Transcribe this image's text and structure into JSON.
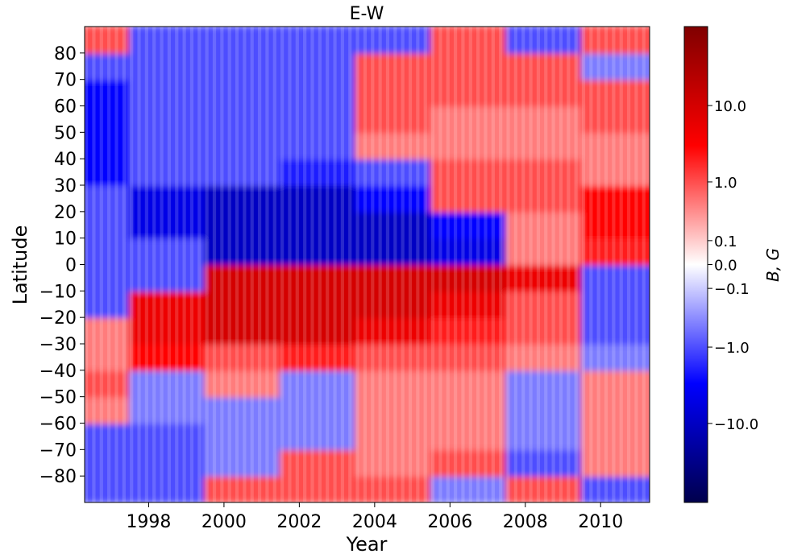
{
  "chart_data": {
    "type": "heatmap",
    "title": "E-W",
    "xlabel": "Year",
    "ylabel": "Latitude",
    "xlim": [
      1996.3,
      2011.3
    ],
    "ylim": [
      -90,
      90
    ],
    "x_ticks": [
      1998,
      2000,
      2002,
      2004,
      2006,
      2008,
      2010
    ],
    "x_tick_labels": [
      "1998",
      "2000",
      "2002",
      "2004",
      "2006",
      "2008",
      "2010"
    ],
    "y_ticks": [
      80,
      70,
      60,
      50,
      40,
      30,
      20,
      10,
      0,
      -10,
      -20,
      -30,
      -40,
      -50,
      -60,
      -70,
      -80
    ],
    "y_tick_labels": [
      "80",
      "70",
      "60",
      "50",
      "40",
      "30",
      "20",
      "10",
      "0",
      "−10",
      "−20",
      "−30",
      "−40",
      "−50",
      "−60",
      "−70",
      "−80"
    ],
    "colorbar": {
      "label": "B, G",
      "scale": "symlog",
      "range": [
        -100,
        100
      ],
      "ticks": [
        10,
        1,
        0.1,
        0,
        -0.1,
        -1,
        -10
      ],
      "tick_labels": [
        "10.0",
        "1.0",
        "0.1",
        "0.0",
        "−0.1",
        "−1.0",
        "−10.0"
      ],
      "colormap": "seismic",
      "colors": [
        "#00004c",
        "#0000ff",
        "#ffffff",
        "#ff0000",
        "#800000"
      ]
    },
    "lat_bands": [
      -85,
      -75,
      -65,
      -55,
      -45,
      -35,
      -25,
      -15,
      -5,
      5,
      15,
      25,
      35,
      45,
      55,
      65,
      75,
      85
    ],
    "epochs": [
      1996.5,
      1998.5,
      2000.5,
      2002.5,
      2004.5,
      2006.5,
      2008.5,
      2010.5
    ],
    "field_B": [
      [
        -1,
        -1,
        1,
        1,
        1,
        -0.5,
        1,
        -1
      ],
      [
        -1,
        -1,
        -0.5,
        1,
        0.5,
        1,
        -1,
        0.5
      ],
      [
        -1,
        -1,
        -0.5,
        -0.5,
        0.5,
        0.5,
        -0.5,
        0.5
      ],
      [
        0.5,
        -0.5,
        -0.5,
        -0.5,
        0.5,
        0.5,
        -0.5,
        0.5
      ],
      [
        1,
        -0.5,
        0.5,
        -0.5,
        0.5,
        0.5,
        -0.5,
        0.5
      ],
      [
        0.5,
        3,
        1,
        2,
        1,
        1,
        0.5,
        -0.5
      ],
      [
        0.5,
        5,
        10,
        10,
        5,
        2,
        1,
        -1
      ],
      [
        -1,
        5,
        10,
        10,
        10,
        5,
        1,
        -1
      ],
      [
        -1,
        -1,
        10,
        10,
        10,
        10,
        5,
        -1
      ],
      [
        -1,
        -1,
        -10,
        -10,
        -10,
        -5,
        0.5,
        2
      ],
      [
        -1,
        -5,
        -10,
        -10,
        -10,
        -3,
        0.5,
        3
      ],
      [
        -1,
        -5,
        -10,
        -10,
        -3,
        1,
        1,
        3
      ],
      [
        -3,
        -1,
        -1,
        -2,
        -1,
        1,
        1,
        0.5
      ],
      [
        -3,
        -1,
        -1,
        -1,
        0.5,
        0.5,
        0.5,
        0.5
      ],
      [
        -3,
        -1,
        -1,
        -1,
        1,
        0.5,
        0.5,
        1
      ],
      [
        -3,
        -1,
        -1,
        -1,
        1,
        1,
        1,
        1
      ],
      [
        -1,
        -1,
        -1,
        -1,
        1,
        1,
        1,
        -0.5
      ],
      [
        1,
        -1,
        -1,
        -1,
        -1,
        1,
        -1,
        1
      ]
    ],
    "grid": false
  }
}
